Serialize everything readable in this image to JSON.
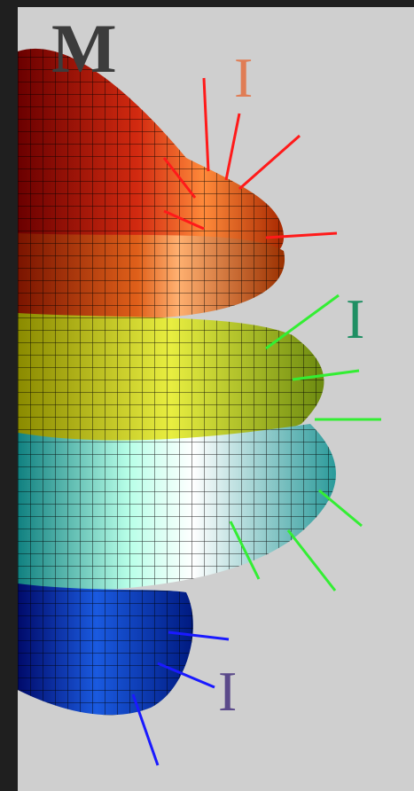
{
  "labels": {
    "top_letter": "M",
    "upper_marker": "I",
    "middle_marker": "I",
    "lower_marker": "I"
  },
  "colors": {
    "panel_bg": "#cfcfcf",
    "frame_bg": "#1f1f1f",
    "red_marker": "#e07d55",
    "green_marker": "#1f8f63",
    "purple_marker": "#5b4a8a",
    "red_spike": "#ff1a1a",
    "green_spike": "#33ee33",
    "blue_spike": "#1a1aff"
  },
  "scene": {
    "subject": "3d-mesh-surface",
    "icon": "mesh-surface-icon"
  }
}
